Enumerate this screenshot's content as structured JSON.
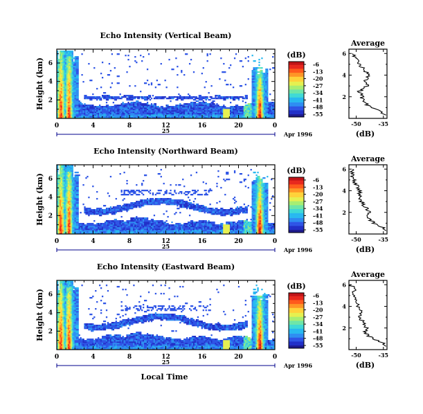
{
  "colors": {
    "colormap": [
      "#1e1a8c",
      "#2230c8",
      "#2f55e6",
      "#2f8ef2",
      "#29b9f0",
      "#3fd9d6",
      "#6ee6a8",
      "#a8ee72",
      "#e6f050",
      "#ffd23a",
      "#ff9626",
      "#ff5a1c",
      "#e8281e",
      "#c01418"
    ],
    "line": "#000000",
    "date_axis": "#00008b"
  },
  "x_tick_labels": [
    "0",
    "4",
    "8",
    "12",
    "16",
    "20",
    "0"
  ],
  "date_label": "25",
  "month_label": "Apr 1996",
  "x_axis_title": "Local Time",
  "y_axis_title": "Height (km)",
  "y_tick_labels": [
    "2",
    "4",
    "6"
  ],
  "colorbar_title": "(dB)",
  "colorbar_tick_labels": [
    "-6",
    "-13",
    "-20",
    "-27",
    "-34",
    "-41",
    "-48",
    "-55"
  ],
  "average_title": "Average",
  "average_unit": "(dB)",
  "average_y_tick_labels": [
    "2",
    "4",
    "6"
  ],
  "chart_data": [
    {
      "type": "heatmap",
      "title": "Echo Intensity (Vertical Beam)",
      "xlabel": "",
      "ylabel": "Height (km)",
      "xlim": [
        0,
        24
      ],
      "ylim": [
        0,
        7.5
      ],
      "zlim": [
        -58,
        -6
      ],
      "z_unit": "dB",
      "x_ticks": [
        0,
        4,
        8,
        12,
        16,
        20,
        24
      ],
      "y_ticks": [
        2,
        4,
        6
      ],
      "average_profile": {
        "xlabel": "(dB)",
        "x_ticks": [
          -50,
          -35
        ],
        "xlim": [
          -54,
          -33
        ],
        "height": [
          0.5,
          1.0,
          1.5,
          2.0,
          2.5,
          3.0,
          3.5,
          4.0,
          4.5,
          5.0,
          5.5,
          6.0
        ],
        "value": [
          -35,
          -42,
          -46,
          -47,
          -48,
          -44,
          -45,
          -43,
          -46,
          -48,
          -50,
          -52
        ]
      }
    },
    {
      "type": "heatmap",
      "title": "Echo Intensity (Northward Beam)",
      "xlabel": "",
      "ylabel": "Height (km)",
      "xlim": [
        0,
        24
      ],
      "ylim": [
        0,
        7.5
      ],
      "zlim": [
        -58,
        -6
      ],
      "z_unit": "dB",
      "x_ticks": [
        0,
        4,
        8,
        12,
        16,
        20,
        24
      ],
      "y_ticks": [
        2,
        4,
        6
      ],
      "average_profile": {
        "xlabel": "(dB)",
        "x_ticks": [
          -50,
          -35
        ],
        "xlim": [
          -54,
          -33
        ],
        "height": [
          0.5,
          1.0,
          1.5,
          2.0,
          2.5,
          3.0,
          3.5,
          4.0,
          4.5,
          5.0,
          5.5,
          6.0
        ],
        "value": [
          -34,
          -40,
          -44,
          -43,
          -45,
          -47,
          -48,
          -48,
          -50,
          -51,
          -52,
          -52
        ]
      }
    },
    {
      "type": "heatmap",
      "title": "Echo Intensity (Eastward Beam)",
      "xlabel": "Local Time",
      "ylabel": "Height (km)",
      "xlim": [
        0,
        24
      ],
      "ylim": [
        0,
        7.5
      ],
      "zlim": [
        -58,
        -6
      ],
      "z_unit": "dB",
      "x_ticks": [
        0,
        4,
        8,
        12,
        16,
        20,
        24
      ],
      "y_ticks": [
        2,
        4,
        6
      ],
      "average_profile": {
        "xlabel": "(dB)",
        "x_ticks": [
          -50,
          -35
        ],
        "xlim": [
          -54,
          -33
        ],
        "height": [
          0.5,
          1.0,
          1.5,
          2.0,
          2.5,
          3.0,
          3.5,
          4.0,
          4.5,
          5.0,
          5.5,
          6.0
        ],
        "value": [
          -34,
          -41,
          -45,
          -44,
          -46,
          -48,
          -47,
          -49,
          -50,
          -52,
          -51,
          -53
        ]
      }
    }
  ]
}
